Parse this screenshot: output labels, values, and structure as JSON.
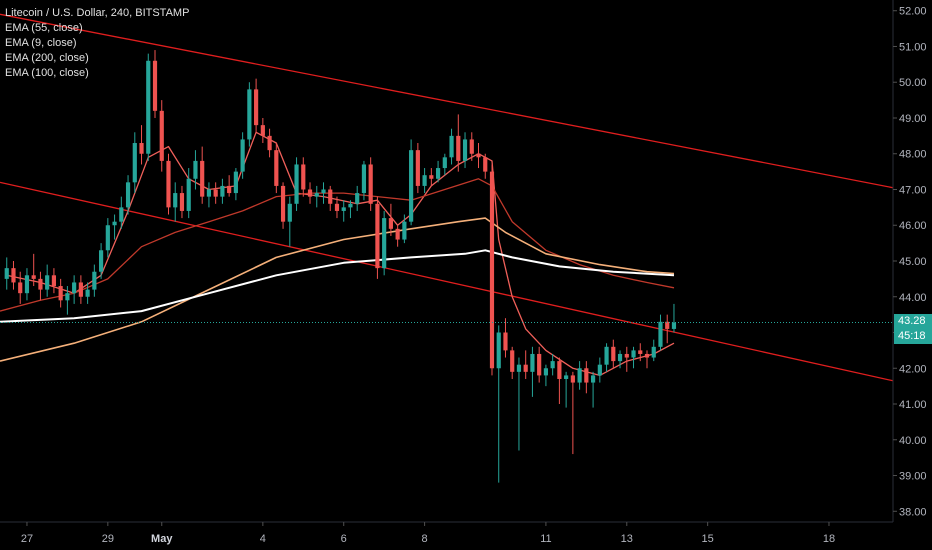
{
  "legend": {
    "symbol": "Litecoin / U.S. Dollar, 240, BITSTAMP",
    "indicators": [
      "EMA (55, close)",
      "EMA (9, close)",
      "EMA (200, close)",
      "EMA (100, close)"
    ]
  },
  "badges": {
    "last_price": "43.28",
    "countdown": "45:18",
    "last_price_color": "#26a69a"
  },
  "colors": {
    "up": "#26a69a",
    "down": "#ef5350",
    "ema9": "#f0605a",
    "ema55": "#c0392b",
    "ema100": "#ffffff",
    "ema200": "#f5b07a",
    "channel": "#e01e1e"
  },
  "chart_data": {
    "type": "candlestick",
    "y_ticks": [
      "52.00",
      "51.00",
      "50.00",
      "49.00",
      "48.00",
      "47.00",
      "46.00",
      "45.00",
      "44.00",
      "43.00",
      "42.00",
      "41.00",
      "40.00",
      "39.00",
      "38.00"
    ],
    "ylim": [
      37.7,
      52.3
    ],
    "x_ticks": [
      {
        "label": "27",
        "t": 3
      },
      {
        "label": "29",
        "t": 15
      },
      {
        "label": "May",
        "t": 23,
        "bold": true
      },
      {
        "label": "4",
        "t": 38
      },
      {
        "label": "6",
        "t": 50
      },
      {
        "label": "8",
        "t": 62
      },
      {
        "label": "11",
        "t": 80
      },
      {
        "label": "13",
        "t": 92
      },
      {
        "label": "15",
        "t": 104
      },
      {
        "label": "18",
        "t": 122
      }
    ],
    "xlim": [
      -1,
      131.5
    ],
    "candles": [
      [
        44.5,
        45.1,
        44.2,
        44.8
      ],
      [
        44.8,
        45.0,
        44.2,
        44.4
      ],
      [
        44.4,
        44.7,
        43.8,
        44.1
      ],
      [
        44.1,
        44.8,
        43.9,
        44.6
      ],
      [
        44.6,
        45.2,
        44.3,
        44.5
      ],
      [
        44.5,
        44.7,
        43.9,
        44.2
      ],
      [
        44.2,
        44.9,
        44.0,
        44.6
      ],
      [
        44.6,
        44.8,
        44.1,
        44.3
      ],
      [
        44.3,
        44.5,
        43.7,
        43.9
      ],
      [
        43.9,
        44.3,
        43.5,
        44.1
      ],
      [
        44.1,
        44.6,
        43.8,
        44.4
      ],
      [
        44.4,
        44.6,
        43.8,
        44.0
      ],
      [
        44.0,
        44.4,
        43.8,
        44.2
      ],
      [
        44.2,
        44.9,
        44.0,
        44.7
      ],
      [
        44.7,
        45.5,
        44.5,
        45.3
      ],
      [
        45.3,
        46.2,
        45.1,
        46.0
      ],
      [
        46.0,
        46.3,
        45.6,
        46.1
      ],
      [
        46.1,
        46.8,
        45.9,
        46.5
      ],
      [
        46.5,
        47.4,
        46.3,
        47.2
      ],
      [
        47.2,
        48.6,
        46.9,
        48.3
      ],
      [
        48.3,
        48.8,
        47.7,
        48.0
      ],
      [
        48.0,
        50.8,
        47.8,
        50.6
      ],
      [
        50.6,
        50.9,
        49.0,
        49.2
      ],
      [
        49.2,
        49.5,
        47.5,
        47.8
      ],
      [
        47.8,
        48.0,
        46.3,
        46.5
      ],
      [
        46.5,
        47.2,
        46.1,
        46.9
      ],
      [
        46.9,
        47.1,
        46.2,
        46.4
      ],
      [
        46.4,
        47.6,
        46.2,
        47.3
      ],
      [
        47.3,
        48.1,
        47.0,
        47.8
      ],
      [
        47.8,
        48.2,
        46.6,
        46.8
      ],
      [
        46.8,
        47.2,
        46.5,
        47.0
      ],
      [
        47.0,
        47.2,
        46.6,
        46.8
      ],
      [
        46.8,
        47.3,
        46.6,
        47.1
      ],
      [
        47.1,
        47.4,
        46.8,
        46.9
      ],
      [
        46.9,
        47.6,
        46.7,
        47.5
      ],
      [
        47.5,
        48.6,
        47.3,
        48.4
      ],
      [
        48.4,
        50.0,
        48.2,
        49.8
      ],
      [
        49.8,
        50.1,
        48.6,
        48.8
      ],
      [
        48.8,
        49.0,
        48.3,
        48.5
      ],
      [
        48.5,
        48.7,
        47.9,
        48.1
      ],
      [
        48.1,
        48.3,
        46.9,
        47.1
      ],
      [
        47.1,
        47.2,
        45.9,
        46.1
      ],
      [
        46.1,
        46.8,
        45.4,
        46.6
      ],
      [
        46.6,
        47.9,
        46.4,
        47.7
      ],
      [
        47.7,
        47.9,
        46.8,
        47.0
      ],
      [
        47.0,
        47.2,
        46.6,
        46.8
      ],
      [
        46.8,
        47.1,
        46.5,
        46.9
      ],
      [
        46.9,
        47.2,
        46.6,
        47.0
      ],
      [
        47.0,
        47.1,
        46.4,
        46.6
      ],
      [
        46.6,
        46.8,
        46.2,
        46.4
      ],
      [
        46.4,
        46.7,
        46.1,
        46.5
      ],
      [
        46.5,
        46.7,
        46.2,
        46.6
      ],
      [
        46.6,
        47.1,
        46.4,
        46.9
      ],
      [
        46.9,
        47.8,
        46.7,
        47.7
      ],
      [
        47.7,
        47.9,
        46.4,
        46.6
      ],
      [
        46.6,
        46.8,
        44.5,
        44.8
      ],
      [
        44.8,
        46.4,
        44.6,
        46.2
      ],
      [
        46.2,
        46.6,
        45.7,
        45.9
      ],
      [
        45.9,
        46.0,
        45.4,
        45.6
      ],
      [
        45.6,
        46.3,
        45.5,
        46.1
      ],
      [
        46.1,
        48.4,
        46.0,
        48.1
      ],
      [
        48.1,
        48.3,
        46.9,
        47.1
      ],
      [
        47.1,
        47.6,
        46.9,
        47.4
      ],
      [
        47.4,
        47.6,
        47.1,
        47.3
      ],
      [
        47.3,
        47.8,
        47.2,
        47.6
      ],
      [
        47.6,
        48.0,
        47.4,
        47.9
      ],
      [
        47.9,
        48.7,
        47.7,
        48.5
      ],
      [
        48.5,
        49.1,
        47.5,
        47.8
      ],
      [
        47.8,
        48.6,
        47.6,
        48.4
      ],
      [
        48.4,
        48.6,
        47.8,
        48.0
      ],
      [
        48.0,
        48.3,
        47.6,
        47.9
      ],
      [
        47.9,
        48.0,
        47.3,
        47.5
      ],
      [
        47.5,
        47.7,
        41.8,
        42.0
      ],
      [
        42.0,
        43.2,
        38.8,
        43.0
      ],
      [
        43.0,
        43.4,
        42.3,
        42.5
      ],
      [
        42.5,
        42.6,
        41.7,
        41.9
      ],
      [
        41.9,
        42.3,
        39.7,
        42.1
      ],
      [
        42.1,
        42.5,
        41.7,
        41.9
      ],
      [
        41.9,
        42.6,
        41.2,
        42.4
      ],
      [
        42.4,
        42.6,
        41.6,
        41.8
      ],
      [
        41.8,
        42.1,
        41.5,
        42.0
      ],
      [
        42.0,
        42.4,
        41.8,
        42.2
      ],
      [
        42.2,
        42.3,
        41.0,
        41.7
      ],
      [
        41.7,
        41.9,
        40.9,
        41.8
      ],
      [
        41.8,
        41.9,
        39.6,
        41.6
      ],
      [
        41.6,
        42.2,
        41.4,
        42.0
      ],
      [
        42.0,
        42.2,
        41.3,
        41.6
      ],
      [
        41.6,
        41.9,
        40.9,
        41.8
      ],
      [
        41.8,
        42.3,
        41.6,
        42.1
      ],
      [
        42.1,
        42.7,
        41.9,
        42.6
      ],
      [
        42.6,
        42.8,
        42.0,
        42.2
      ],
      [
        42.2,
        42.5,
        42.0,
        42.4
      ],
      [
        42.4,
        42.6,
        41.9,
        42.3
      ],
      [
        42.3,
        42.6,
        42.0,
        42.5
      ],
      [
        42.5,
        42.7,
        42.2,
        42.4
      ],
      [
        42.4,
        42.5,
        42.0,
        42.3
      ],
      [
        42.3,
        42.8,
        42.2,
        42.6
      ],
      [
        42.6,
        43.5,
        42.5,
        43.3
      ],
      [
        43.3,
        43.5,
        42.7,
        43.1
      ],
      [
        43.1,
        43.8,
        43.0,
        43.28
      ]
    ],
    "ema": {
      "ema9": [
        [
          0,
          44.6
        ],
        [
          5,
          44.4
        ],
        [
          10,
          44.1
        ],
        [
          14,
          44.6
        ],
        [
          18,
          46.4
        ],
        [
          21,
          47.9
        ],
        [
          24,
          48.2
        ],
        [
          27,
          47.3
        ],
        [
          30,
          47.0
        ],
        [
          34,
          47.1
        ],
        [
          37,
          48.6
        ],
        [
          40,
          48.3
        ],
        [
          43,
          46.9
        ],
        [
          47,
          46.8
        ],
        [
          52,
          46.6
        ],
        [
          55,
          46.7
        ],
        [
          58,
          46.0
        ],
        [
          60,
          46.3
        ],
        [
          63,
          47.1
        ],
        [
          67,
          47.7
        ],
        [
          70,
          48.0
        ],
        [
          72,
          47.8
        ],
        [
          73,
          45.6
        ],
        [
          75,
          44.0
        ],
        [
          77,
          43.1
        ],
        [
          80,
          42.5
        ],
        [
          84,
          42.0
        ],
        [
          88,
          41.8
        ],
        [
          92,
          42.2
        ],
        [
          96,
          42.4
        ],
        [
          99,
          42.7
        ]
      ],
      "ema55": [
        [
          -1,
          43.6
        ],
        [
          5,
          43.9
        ],
        [
          10,
          44.1
        ],
        [
          15,
          44.5
        ],
        [
          20,
          45.4
        ],
        [
          25,
          45.8
        ],
        [
          30,
          46.1
        ],
        [
          35,
          46.4
        ],
        [
          40,
          46.8
        ],
        [
          45,
          46.9
        ],
        [
          50,
          46.9
        ],
        [
          55,
          46.8
        ],
        [
          60,
          46.7
        ],
        [
          65,
          47.0
        ],
        [
          70,
          47.3
        ],
        [
          72,
          47.1
        ],
        [
          75,
          46.1
        ],
        [
          80,
          45.3
        ],
        [
          85,
          44.9
        ],
        [
          90,
          44.6
        ],
        [
          95,
          44.4
        ],
        [
          99,
          44.25
        ]
      ],
      "ema200": [
        [
          -1,
          42.2
        ],
        [
          10,
          42.7
        ],
        [
          20,
          43.3
        ],
        [
          30,
          44.2
        ],
        [
          40,
          45.1
        ],
        [
          50,
          45.6
        ],
        [
          60,
          45.9
        ],
        [
          67,
          46.1
        ],
        [
          71,
          46.2
        ],
        [
          74,
          45.8
        ],
        [
          80,
          45.2
        ],
        [
          88,
          44.9
        ],
        [
          95,
          44.7
        ],
        [
          99,
          44.65
        ]
      ],
      "ema100": [
        [
          -1,
          43.3
        ],
        [
          10,
          43.4
        ],
        [
          20,
          43.6
        ],
        [
          30,
          44.1
        ],
        [
          40,
          44.6
        ],
        [
          50,
          44.95
        ],
        [
          60,
          45.1
        ],
        [
          68,
          45.2
        ],
        [
          71,
          45.3
        ],
        [
          75,
          45.1
        ],
        [
          82,
          44.85
        ],
        [
          90,
          44.7
        ],
        [
          99,
          44.6
        ]
      ]
    },
    "channel_lines": [
      {
        "name": "upper",
        "from": [
          -1,
          51.9
        ],
        "to": [
          131.5,
          47.05
        ]
      },
      {
        "name": "lower",
        "from": [
          -1,
          47.2
        ],
        "to": [
          131.5,
          41.65
        ]
      }
    ],
    "last_price": 43.28
  }
}
